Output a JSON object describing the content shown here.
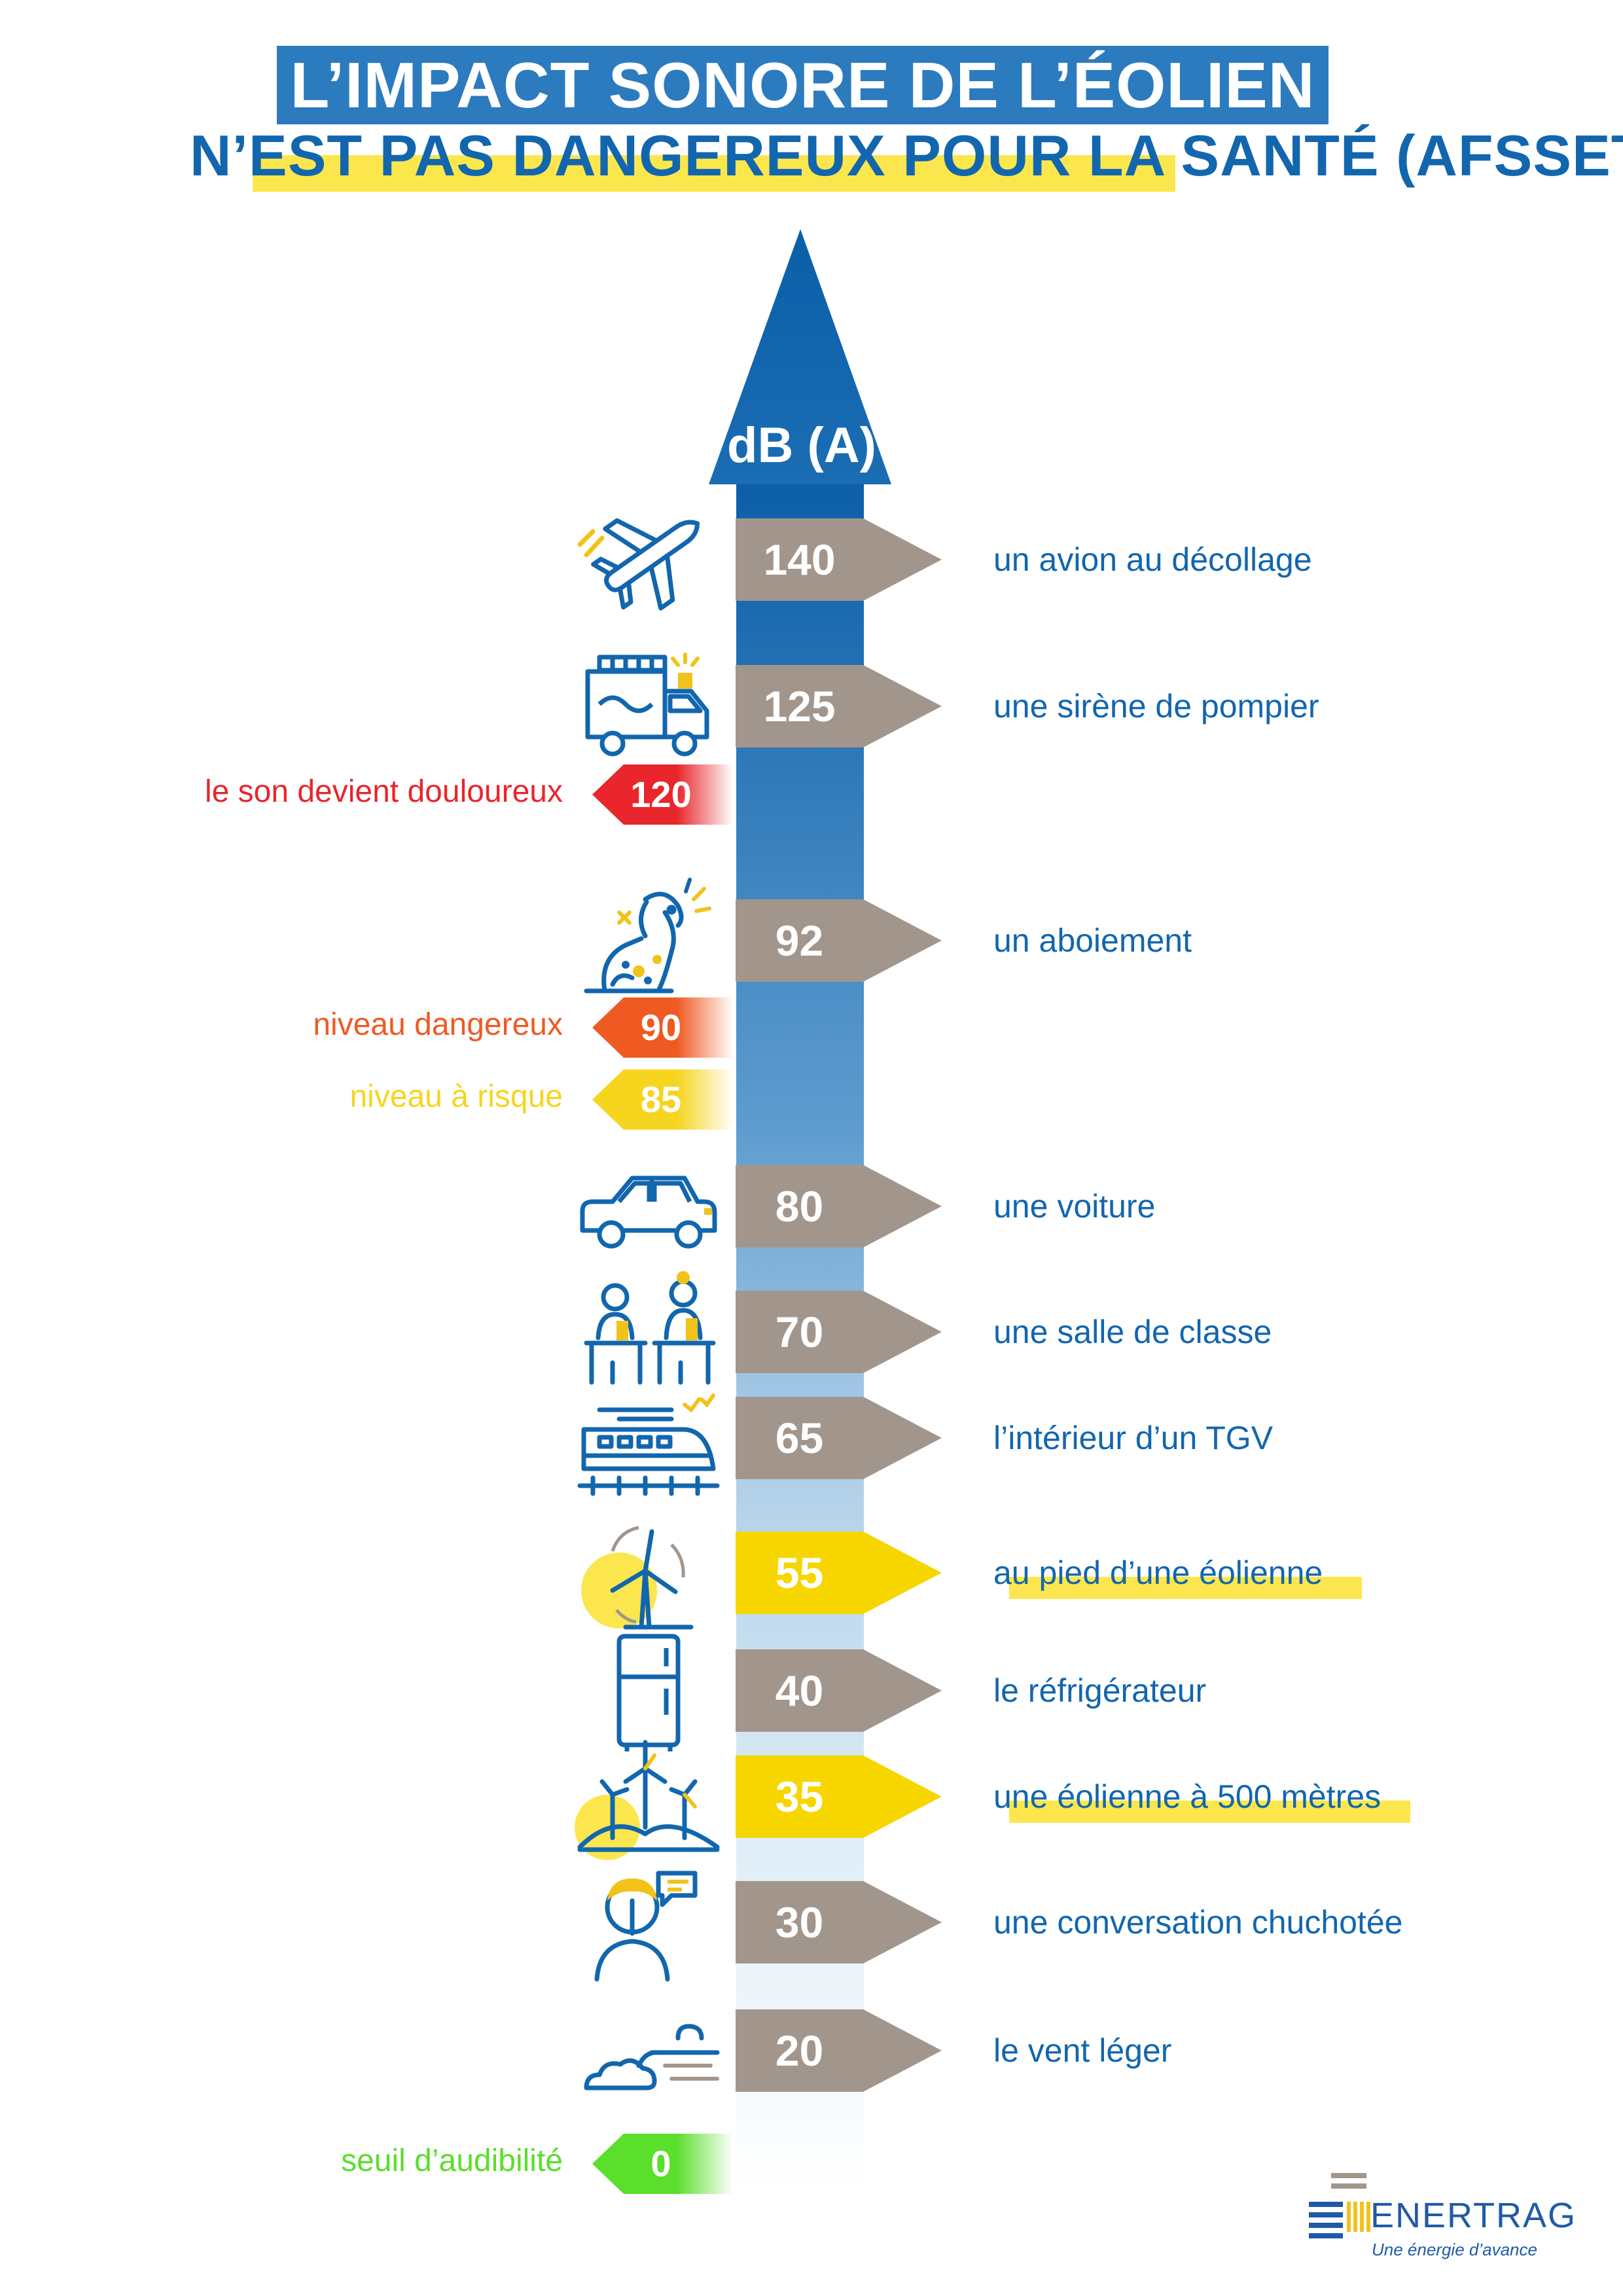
{
  "header": {
    "line1": "L’IMPACT SONORE DE L’ÉOLIEN",
    "line2": "N’EST PAS DANGEREUX POUR LA SANTÉ (AFSSET)"
  },
  "axis": {
    "unit": "dB (A)"
  },
  "items": [
    {
      "value": "140",
      "label": "un avion au décollage",
      "icon": "airplane-icon",
      "highlight": false
    },
    {
      "value": "125",
      "label": "une sirène de pompier",
      "icon": "fire-truck-icon",
      "highlight": false
    },
    {
      "value": "92",
      "label": "un aboiement",
      "icon": "barking-dog-icon",
      "highlight": false
    },
    {
      "value": "80",
      "label": "une voiture",
      "icon": "car-icon",
      "highlight": false
    },
    {
      "value": "70",
      "label": "une salle de classe",
      "icon": "classroom-icon",
      "highlight": false
    },
    {
      "value": "65",
      "label": "l’intérieur d’un TGV",
      "icon": "train-icon",
      "highlight": false
    },
    {
      "value": "55",
      "label": "au pied d’une éolienne",
      "icon": "wind-turbine-icon",
      "highlight": true
    },
    {
      "value": "40",
      "label": "le réfrigérateur",
      "icon": "refrigerator-icon",
      "highlight": false
    },
    {
      "value": "35",
      "label": "une éolienne à 500 mètres",
      "icon": "wind-farm-icon",
      "highlight": true
    },
    {
      "value": "30",
      "label": "une conversation chuchotée",
      "icon": "whisper-icon",
      "highlight": false
    },
    {
      "value": "20",
      "label": "le vent léger",
      "icon": "light-wind-icon",
      "highlight": false
    }
  ],
  "thresholds": [
    {
      "value": "120",
      "label": "le son devient douloureux",
      "color": "#e8262c"
    },
    {
      "value": "90",
      "label": "niveau dangereux",
      "color": "#ef5a22"
    },
    {
      "value": "85",
      "label": "niveau à risque",
      "color": "#f6d51f"
    },
    {
      "value": "0",
      "label": "seuil d’audibilité",
      "color": "#5bde2c"
    }
  ],
  "colors": {
    "brand_blue": "#1266ae",
    "tag_gray": "#a2968c",
    "highlight_yellow": "#fbe74d",
    "tag_yellow": "#f7d600"
  },
  "logo": {
    "name": "ENERTRAG",
    "tagline": "Une énergie d’avance"
  }
}
